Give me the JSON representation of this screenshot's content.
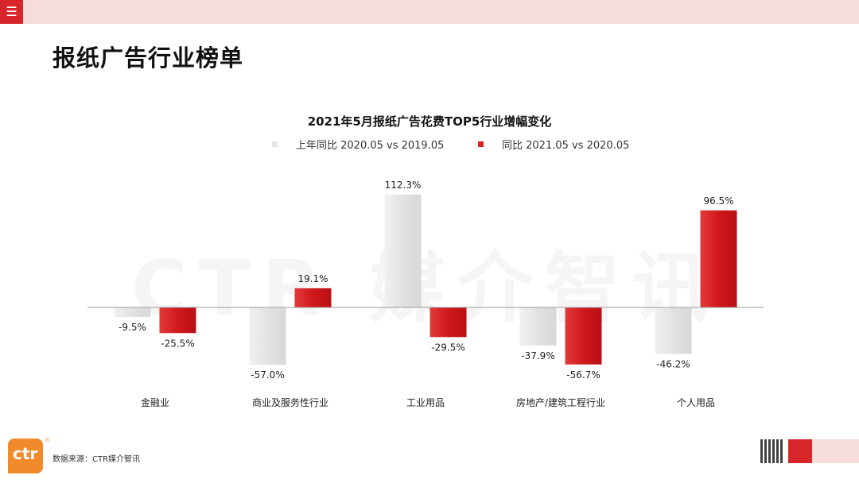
{
  "header": {
    "menu_icon": "menu-icon",
    "page_title": "报纸广告行业榜单"
  },
  "watermark": "CTR 媒介智讯",
  "colors": {
    "accent": "#d7262a",
    "series_a": "#e6e6e6",
    "series_b": "#d7262a",
    "band": "#f7dcdc",
    "logo": "#f08a2a"
  },
  "chart_data": {
    "type": "bar",
    "title": "2021年5月报纸广告花费TOP5行业增幅变化",
    "categories": [
      "金融业",
      "商业及服务性行业",
      "工业用品",
      "房地产/建筑工程行业",
      "个人用品"
    ],
    "series": [
      {
        "name": "上年同比 2020.05 vs 2019.05",
        "values": [
          -9.5,
          -57.0,
          112.3,
          -37.9,
          -46.2
        ],
        "labels": [
          "-9.5%",
          "-57.0%",
          "112.3%",
          "-37.9%",
          "-46.2%"
        ]
      },
      {
        "name": "同比 2021.05 vs 2020.05",
        "values": [
          -25.5,
          19.1,
          -29.5,
          -56.7,
          96.5
        ],
        "labels": [
          "-25.5%",
          "19.1%",
          "-29.5%",
          "-56.7%",
          "96.5%"
        ]
      }
    ],
    "legend": "top-center",
    "grid": false
  },
  "footer": {
    "logo_text": "ctr",
    "reg_mark": "®",
    "source": "数据来源：CTR媒介智讯",
    "qr_icon": "qr-code-icon"
  }
}
